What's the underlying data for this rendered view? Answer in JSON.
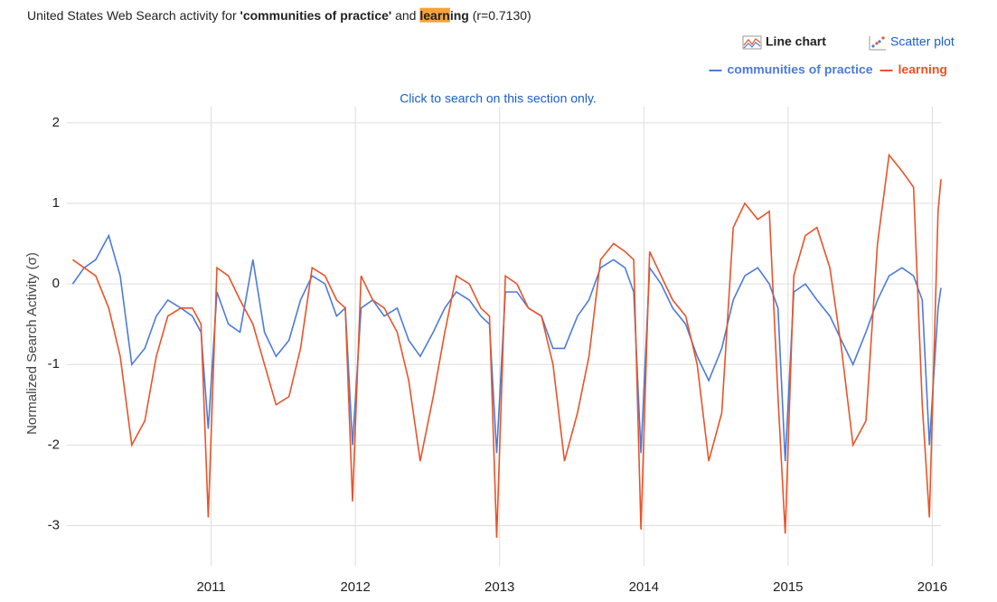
{
  "header": {
    "title_parts": [
      {
        "text": "United States Web Search activity for ",
        "style": "plain"
      },
      {
        "text": "'communities of practice'",
        "style": "bold"
      },
      {
        "text": " and ",
        "style": "plain"
      },
      {
        "text": "learn",
        "style": "highlight"
      },
      {
        "text": "ing",
        "style": "bold"
      },
      {
        "text": " (r=0.7130)",
        "style": "plain"
      }
    ],
    "view_options": [
      "Line chart",
      "Scatter plot"
    ]
  },
  "chart_data": {
    "type": "line",
    "note": "Click to search on this section only.",
    "y_label": "Normalized Search Activity (σ)",
    "x": [
      2010.04,
      2010.12,
      2010.2,
      2010.29,
      2010.37,
      2010.45,
      2010.54,
      2010.62,
      2010.7,
      2010.79,
      2010.87,
      2010.93,
      2010.98,
      2011.04,
      2011.12,
      2011.2,
      2011.29,
      2011.37,
      2011.45,
      2011.54,
      2011.62,
      2011.7,
      2011.79,
      2011.87,
      2011.93,
      2011.98,
      2012.04,
      2012.12,
      2012.2,
      2012.29,
      2012.37,
      2012.45,
      2012.54,
      2012.62,
      2012.7,
      2012.79,
      2012.87,
      2012.93,
      2012.98,
      2013.04,
      2013.12,
      2013.2,
      2013.29,
      2013.37,
      2013.45,
      2013.54,
      2013.62,
      2013.7,
      2013.79,
      2013.87,
      2013.93,
      2013.98,
      2014.04,
      2014.12,
      2014.2,
      2014.29,
      2014.37,
      2014.45,
      2014.54,
      2014.62,
      2014.7,
      2014.79,
      2014.87,
      2014.93,
      2014.98,
      2015.04,
      2015.12,
      2015.2,
      2015.29,
      2015.37,
      2015.45,
      2015.54,
      2015.62,
      2015.7,
      2015.79,
      2015.87,
      2015.93,
      2015.98,
      2016.04,
      2016.06
    ],
    "series": [
      {
        "name": "communities of practice",
        "color": "#4d7bd9",
        "values": [
          0.0,
          0.2,
          0.3,
          0.6,
          0.1,
          -1.0,
          -0.8,
          -0.4,
          -0.2,
          -0.3,
          -0.4,
          -0.6,
          -1.8,
          -0.1,
          -0.5,
          -0.6,
          0.3,
          -0.6,
          -0.9,
          -0.7,
          -0.2,
          0.1,
          0.0,
          -0.4,
          -0.3,
          -2.0,
          -0.3,
          -0.2,
          -0.4,
          -0.3,
          -0.7,
          -0.9,
          -0.6,
          -0.3,
          -0.1,
          -0.2,
          -0.4,
          -0.5,
          -2.1,
          -0.1,
          -0.1,
          -0.3,
          -0.4,
          -0.8,
          -0.8,
          -0.4,
          -0.2,
          0.2,
          0.3,
          0.2,
          -0.1,
          -2.1,
          0.2,
          0.0,
          -0.3,
          -0.5,
          -0.9,
          -1.2,
          -0.8,
          -0.2,
          0.1,
          0.2,
          0.0,
          -0.3,
          -2.2,
          -0.1,
          0.0,
          -0.2,
          -0.4,
          -0.7,
          -1.0,
          -0.6,
          -0.2,
          0.1,
          0.2,
          0.1,
          -0.2,
          -2.0,
          -0.3,
          -0.05
        ]
      },
      {
        "name": "learning",
        "color": "#e8542a",
        "values": [
          0.3,
          0.2,
          0.1,
          -0.3,
          -0.9,
          -2.0,
          -1.7,
          -0.9,
          -0.4,
          -0.3,
          -0.3,
          -0.5,
          -2.9,
          0.2,
          0.1,
          -0.2,
          -0.5,
          -1.0,
          -1.5,
          -1.4,
          -0.8,
          0.2,
          0.1,
          -0.2,
          -0.3,
          -2.7,
          0.1,
          -0.2,
          -0.3,
          -0.6,
          -1.2,
          -2.2,
          -1.4,
          -0.6,
          0.1,
          0.0,
          -0.3,
          -0.4,
          -3.15,
          0.1,
          0.0,
          -0.3,
          -0.4,
          -1.0,
          -2.2,
          -1.6,
          -0.9,
          0.3,
          0.5,
          0.4,
          0.3,
          -3.05,
          0.4,
          0.1,
          -0.2,
          -0.4,
          -1.0,
          -2.2,
          -1.6,
          0.7,
          1.0,
          0.8,
          0.9,
          -1.4,
          -3.1,
          0.1,
          0.6,
          0.7,
          0.2,
          -0.8,
          -2.0,
          -1.7,
          0.5,
          1.6,
          1.4,
          1.2,
          -1.5,
          -2.9,
          0.9,
          1.3
        ]
      }
    ],
    "xlim": [
      2010,
      2016.06
    ],
    "ylim": [
      -3.5,
      2.2
    ],
    "xticks": [
      2011,
      2012,
      2013,
      2014,
      2015,
      2016
    ],
    "yticks": [
      2,
      1,
      0,
      -1,
      -2,
      -3
    ],
    "grid": true
  }
}
